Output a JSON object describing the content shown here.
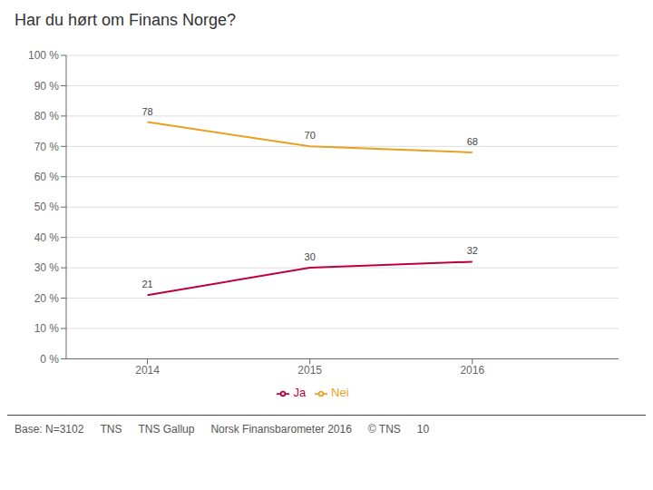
{
  "chart_data": {
    "type": "line",
    "title": "Har du hørt om Finans Norge?",
    "x": [
      2014,
      2015,
      2016
    ],
    "series": [
      {
        "name": "Ja",
        "color": "#C0003C",
        "values": [
          21,
          30,
          32
        ]
      },
      {
        "name": "Nei",
        "color": "#E8A020",
        "values": [
          78,
          70,
          68
        ]
      }
    ],
    "xlim": [
      2013.5,
      2016.9
    ],
    "xticks": [
      2014,
      2015,
      2016
    ],
    "ylim": [
      0,
      100
    ],
    "yticks": [
      {
        "value": 0,
        "label": "0 %"
      },
      {
        "value": 10,
        "label": "10 %"
      },
      {
        "value": 20,
        "label": "20 %"
      },
      {
        "value": 30,
        "label": "30 %"
      },
      {
        "value": 40,
        "label": "40 %"
      },
      {
        "value": 50,
        "label": "50 %"
      },
      {
        "value": 60,
        "label": "60 %"
      },
      {
        "value": 70,
        "label": "70 %"
      },
      {
        "value": 80,
        "label": "80 %"
      },
      {
        "value": 90,
        "label": "90 %"
      },
      {
        "value": 100,
        "label": "100 %"
      }
    ],
    "grid": true,
    "legend": "bottom",
    "data_labels": true,
    "annotations": [
      "Base: N=3102",
      "TNS",
      "TNS Gallup",
      "Norsk Finansbarometer 2016",
      "© TNS",
      "10"
    ]
  }
}
